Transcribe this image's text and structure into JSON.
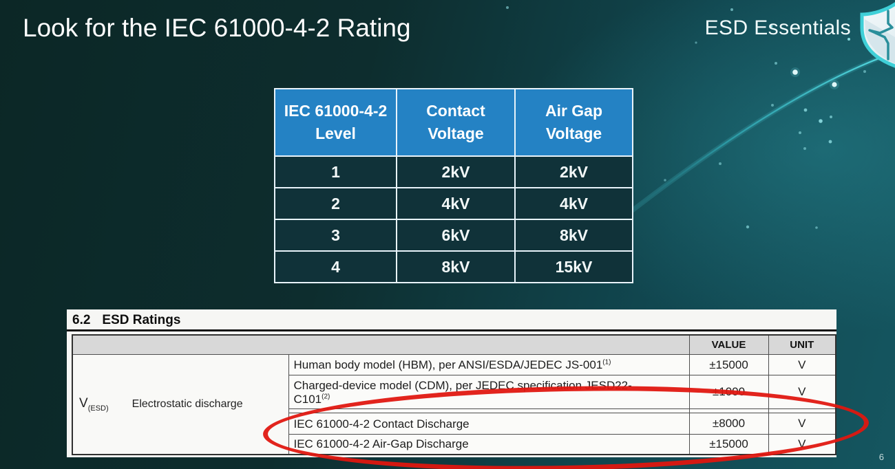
{
  "slide": {
    "title": "Look for the IEC 61000-4-2 Rating",
    "brand": "ESD Essentials",
    "page_number": "6"
  },
  "icons": {
    "brand_icon": "shield-heartbeat-icon",
    "background_decor": [
      "swoosh-curve",
      "sparkle-dots"
    ]
  },
  "levels_table": {
    "headers": [
      [
        "IEC 61000-4-2",
        "Level"
      ],
      [
        "Contact",
        "Voltage"
      ],
      [
        "Air Gap",
        "Voltage"
      ]
    ],
    "rows": [
      [
        "1",
        "2kV",
        "2kV"
      ],
      [
        "2",
        "4kV",
        "4kV"
      ],
      [
        "3",
        "6kV",
        "8kV"
      ],
      [
        "4",
        "8kV",
        "15kV"
      ]
    ]
  },
  "datasheet": {
    "section_number": "6.2",
    "section_title": "ESD Ratings",
    "value_header": "VALUE",
    "unit_header": "UNIT",
    "symbol": "V",
    "symbol_sub": "(ESD)",
    "parameter": "Electrostatic discharge",
    "rows": [
      {
        "line1": "Human body model (HBM), per ANSI/ESDA/JEDEC JS-001",
        "sup1": "(1)",
        "line2": "",
        "sup2": "",
        "value": "±15000",
        "unit": "V"
      },
      {
        "line1": "Charged-device model (CDM), per JEDEC specification JESD22-",
        "sup1": "",
        "line2": "C101",
        "sup2": "(2)",
        "value": "±1000",
        "unit": "V"
      },
      {
        "line1": "IEC 61000-4-2 Contact Discharge",
        "sup1": "",
        "line2": "",
        "sup2": "",
        "value": "±8000",
        "unit": "V"
      },
      {
        "line1": "IEC 61000-4-2 Air-Gap Discharge",
        "sup1": "",
        "line2": "",
        "sup2": "",
        "value": "±15000",
        "unit": "V"
      }
    ]
  },
  "colors": {
    "background_teal_dark": "#0c2726",
    "background_teal_light": "#155660",
    "table_header_blue": "#2482c4",
    "table_cell_teal": "#103239",
    "highlight_red": "#e0160f",
    "shield_teal": "#3fd0d8",
    "doc_header_gray": "#d8d8d8"
  }
}
